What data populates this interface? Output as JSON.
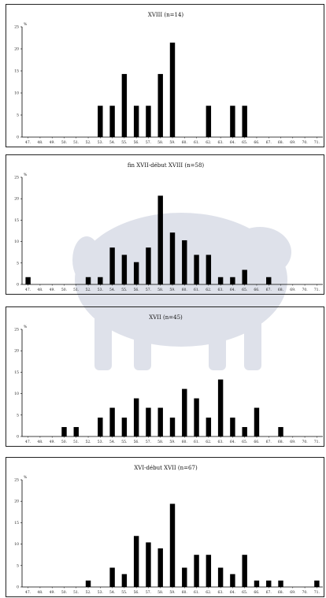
{
  "chart_data": [
    {
      "type": "bar",
      "title": "XVIII (n=14)",
      "ylabel": "%",
      "ylim": [
        0,
        25
      ],
      "yticks": [
        "0",
        "5",
        "10",
        "15",
        "20",
        "25"
      ],
      "categories": [
        "47.",
        "48.",
        "49.",
        "50.",
        "51.",
        "52.",
        "53.",
        "54.",
        "55.",
        "56.",
        "57.",
        "58.",
        "59.",
        "60.",
        "61.",
        "62.",
        "63.",
        "64.",
        "65.",
        "66.",
        "67.",
        "68.",
        "69.",
        "70.",
        "71."
      ],
      "values": [
        0,
        0,
        0,
        0,
        0,
        0,
        7.1,
        7.1,
        14.3,
        7.1,
        7.1,
        14.3,
        21.4,
        0,
        0,
        7.1,
        0,
        7.1,
        7.1,
        0,
        0,
        0,
        0,
        0,
        0
      ]
    },
    {
      "type": "bar",
      "title": "fin XVII-début XVIII (n=58)",
      "ylabel": "%",
      "ylim": [
        0,
        25
      ],
      "yticks": [
        "0",
        "5",
        "10",
        "15",
        "20",
        "25"
      ],
      "categories": [
        "47.",
        "48.",
        "49.",
        "50.",
        "51.",
        "52.",
        "53.",
        "54.",
        "55.",
        "56.",
        "57.",
        "58.",
        "59.",
        "60.",
        "61.",
        "62.",
        "63.",
        "64.",
        "65.",
        "66.",
        "67.",
        "68.",
        "69.",
        "70.",
        "71."
      ],
      "values": [
        1.7,
        0,
        0,
        0,
        0,
        1.7,
        1.7,
        8.6,
        6.9,
        5.2,
        8.6,
        20.7,
        12.1,
        10.3,
        6.9,
        6.9,
        1.7,
        1.7,
        3.4,
        0,
        1.7,
        0,
        0,
        0,
        0
      ]
    },
    {
      "type": "bar",
      "title": "XVII (n=45)",
      "ylabel": "%",
      "ylim": [
        0,
        25
      ],
      "yticks": [
        "0",
        "5",
        "10",
        "15",
        "20",
        "25"
      ],
      "categories": [
        "47.",
        "48.",
        "49.",
        "50.",
        "51.",
        "52.",
        "53.",
        "54.",
        "55.",
        "56.",
        "57.",
        "58.",
        "59.",
        "60.",
        "61.",
        "62.",
        "63.",
        "64.",
        "65.",
        "66.",
        "67.",
        "68.",
        "69.",
        "70.",
        "71."
      ],
      "values": [
        0,
        0,
        0,
        2.2,
        2.2,
        0,
        4.4,
        6.7,
        4.4,
        8.9,
        6.7,
        6.7,
        4.4,
        11.1,
        8.9,
        4.4,
        13.3,
        4.4,
        2.2,
        6.7,
        0,
        2.2,
        0,
        0,
        0
      ]
    },
    {
      "type": "bar",
      "title": "XVI-début XVII (n=67)",
      "ylabel": "%",
      "ylim": [
        0,
        25
      ],
      "yticks": [
        "0",
        "5",
        "10",
        "15",
        "20",
        "25"
      ],
      "categories": [
        "47.",
        "48.",
        "49.",
        "50.",
        "51.",
        "52.",
        "53.",
        "54.",
        "55.",
        "56.",
        "57.",
        "58.",
        "59.",
        "60.",
        "61.",
        "62.",
        "63.",
        "64.",
        "65.",
        "66.",
        "67.",
        "68.",
        "69.",
        "70.",
        "71."
      ],
      "values": [
        0,
        0,
        0,
        0,
        0,
        1.5,
        0,
        4.5,
        3,
        11.9,
        10.4,
        9,
        19.4,
        4.5,
        7.5,
        7.5,
        4.5,
        3,
        7.5,
        1.5,
        1.5,
        1.5,
        0,
        0,
        1.5
      ]
    }
  ]
}
